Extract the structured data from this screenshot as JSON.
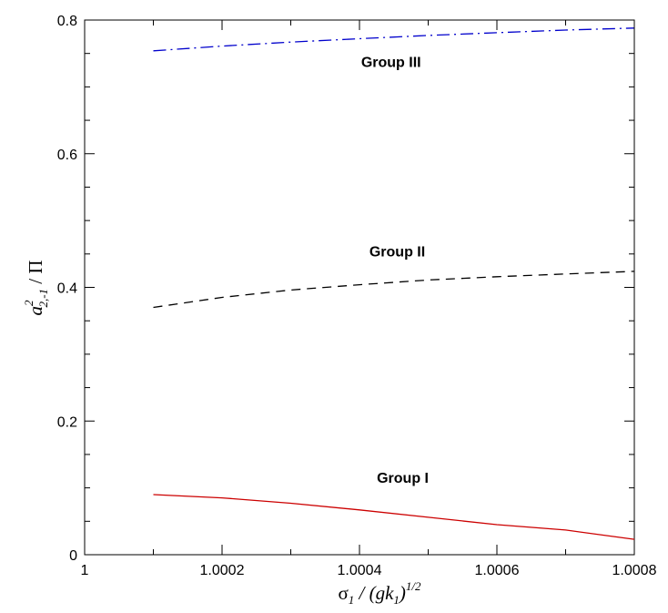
{
  "chart_data": {
    "type": "line",
    "title": "",
    "xlim": [
      1,
      1.0008
    ],
    "ylim": [
      0,
      0.8
    ],
    "grid": false,
    "legend": "none",
    "x_ticks": [
      1,
      1.0002,
      1.0004,
      1.0006,
      1.0008
    ],
    "x_tick_labels": [
      "1",
      "1.0002",
      "1.0004",
      "1.0006",
      "1.0008"
    ],
    "y_ticks": [
      0,
      0.2,
      0.4,
      0.6,
      0.8
    ],
    "y_tick_labels": [
      "0",
      "0.2",
      "0.4",
      "0.6",
      "0.8"
    ],
    "xlabel": {
      "sigma": "σ",
      "sub1": "1",
      "mid": " / (gk",
      "sub2": "1",
      "close": ")",
      "sup": "1/2"
    },
    "ylabel": {
      "a": "a",
      "sup": "2",
      "sub": "2,-1",
      "rest": " / Π"
    },
    "series": [
      {
        "x": [
          1.0001,
          1.0002,
          1.0003,
          1.0004,
          1.0005,
          1.0006,
          1.0007,
          1.0008
        ],
        "y": [
          0.09,
          0.085,
          0.077,
          0.067,
          0.056,
          0.045,
          0.037,
          0.023
        ],
        "color": "#cc0000",
        "style": "solid"
      },
      {
        "x": [
          1.0001,
          1.0002,
          1.0003,
          1.0004,
          1.0005,
          1.0006,
          1.0007,
          1.0008
        ],
        "y": [
          0.37,
          0.385,
          0.396,
          0.404,
          0.411,
          0.416,
          0.42,
          0.424
        ],
        "color": "#000000",
        "style": "dashed"
      },
      {
        "x": [
          1.0001,
          1.0002,
          1.0003,
          1.0004,
          1.0005,
          1.0006,
          1.0007,
          1.0008
        ],
        "y": [
          0.754,
          0.761,
          0.767,
          0.772,
          0.777,
          0.781,
          0.785,
          0.788
        ],
        "color": "#0000cc",
        "style": "dashdot"
      }
    ],
    "annotations": [
      {
        "text": "Group I",
        "x": 1.000463,
        "y": 0.108
      },
      {
        "text": "Group II",
        "x": 1.000455,
        "y": 0.446
      },
      {
        "text": "Group III",
        "x": 1.000446,
        "y": 0.73
      }
    ]
  }
}
